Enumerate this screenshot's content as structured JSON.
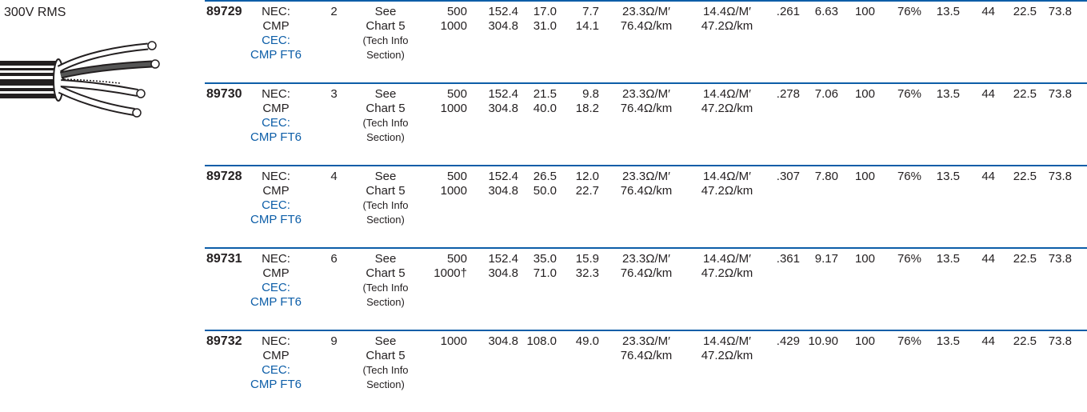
{
  "voltage_label": "300V RMS",
  "rows": [
    {
      "part": "89729",
      "nec": "NEC:",
      "nec_rating": "CMP",
      "cec": "CEC:",
      "cec_rating": "CMP FT6",
      "awg": "2",
      "shield1": "See",
      "shield2": "Chart 5",
      "shield3": "(Tech Info",
      "shield4": "Section)",
      "ft1": "500",
      "ft2": "1000",
      "m1": "152.4",
      "m2": "304.8",
      "lb1": "17.0",
      "lb2": "31.0",
      "kg1": "7.7",
      "kg2": "14.1",
      "ohm1": "23.3Ω/M′",
      "ohm2": "76.4Ω/km",
      "cap1": "14.4Ω/M′",
      "cap2": "47.2Ω/km",
      "od_in": ".261",
      "od_mm": "6.63",
      "v1": "100",
      "v2": "76%",
      "v3": "13.5",
      "v4": "44",
      "v5": "22.5",
      "v6": "73.8"
    },
    {
      "part": "89730",
      "nec": "NEC:",
      "nec_rating": "CMP",
      "cec": "CEC:",
      "cec_rating": "CMP FT6",
      "awg": "3",
      "shield1": "See",
      "shield2": "Chart 5",
      "shield3": "(Tech Info",
      "shield4": "Section)",
      "ft1": "500",
      "ft2": "1000",
      "m1": "152.4",
      "m2": "304.8",
      "lb1": "21.5",
      "lb2": "40.0",
      "kg1": "9.8",
      "kg2": "18.2",
      "ohm1": "23.3Ω/M′",
      "ohm2": "76.4Ω/km",
      "cap1": "14.4Ω/M′",
      "cap2": "47.2Ω/km",
      "od_in": ".278",
      "od_mm": "7.06",
      "v1": "100",
      "v2": "76%",
      "v3": "13.5",
      "v4": "44",
      "v5": "22.5",
      "v6": "73.8"
    },
    {
      "part": "89728",
      "nec": "NEC:",
      "nec_rating": "CMP",
      "cec": "CEC:",
      "cec_rating": "CMP FT6",
      "awg": "4",
      "shield1": "See",
      "shield2": "Chart 5",
      "shield3": "(Tech Info",
      "shield4": "Section)",
      "ft1": "500",
      "ft2": "1000",
      "m1": "152.4",
      "m2": "304.8",
      "lb1": "26.5",
      "lb2": "50.0",
      "kg1": "12.0",
      "kg2": "22.7",
      "ohm1": "23.3Ω/M′",
      "ohm2": "76.4Ω/km",
      "cap1": "14.4Ω/M′",
      "cap2": "47.2Ω/km",
      "od_in": ".307",
      "od_mm": "7.80",
      "v1": "100",
      "v2": "76%",
      "v3": "13.5",
      "v4": "44",
      "v5": "22.5",
      "v6": "73.8"
    },
    {
      "part": "89731",
      "nec": "NEC:",
      "nec_rating": "CMP",
      "cec": "CEC:",
      "cec_rating": "CMP FT6",
      "awg": "6",
      "shield1": "See",
      "shield2": "Chart 5",
      "shield3": "(Tech Info",
      "shield4": "Section)",
      "ft1": "500",
      "ft2": "1000†",
      "m1": "152.4",
      "m2": "304.8",
      "lb1": "35.0",
      "lb2": "71.0",
      "kg1": "15.9",
      "kg2": "32.3",
      "ohm1": "23.3Ω/M′",
      "ohm2": "76.4Ω/km",
      "cap1": "14.4Ω/M′",
      "cap2": "47.2Ω/km",
      "od_in": ".361",
      "od_mm": "9.17",
      "v1": "100",
      "v2": "76%",
      "v3": "13.5",
      "v4": "44",
      "v5": "22.5",
      "v6": "73.8"
    },
    {
      "part": "89732",
      "nec": "NEC:",
      "nec_rating": "CMP",
      "cec": "CEC:",
      "cec_rating": "CMP FT6",
      "awg": "9",
      "shield1": "See",
      "shield2": "Chart 5",
      "shield3": "(Tech Info",
      "shield4": "Section)",
      "ft1": "1000",
      "ft2": "",
      "m1": "304.8",
      "m2": "",
      "lb1": "108.0",
      "lb2": "",
      "kg1": "49.0",
      "kg2": "",
      "ohm1": "23.3Ω/M′",
      "ohm2": "76.4Ω/km",
      "cap1": "14.4Ω/M′",
      "cap2": "47.2Ω/km",
      "od_in": ".429",
      "od_mm": "10.90",
      "v1": "100",
      "v2": "76%",
      "v3": "13.5",
      "v4": "44",
      "v5": "22.5",
      "v6": "73.8"
    }
  ]
}
